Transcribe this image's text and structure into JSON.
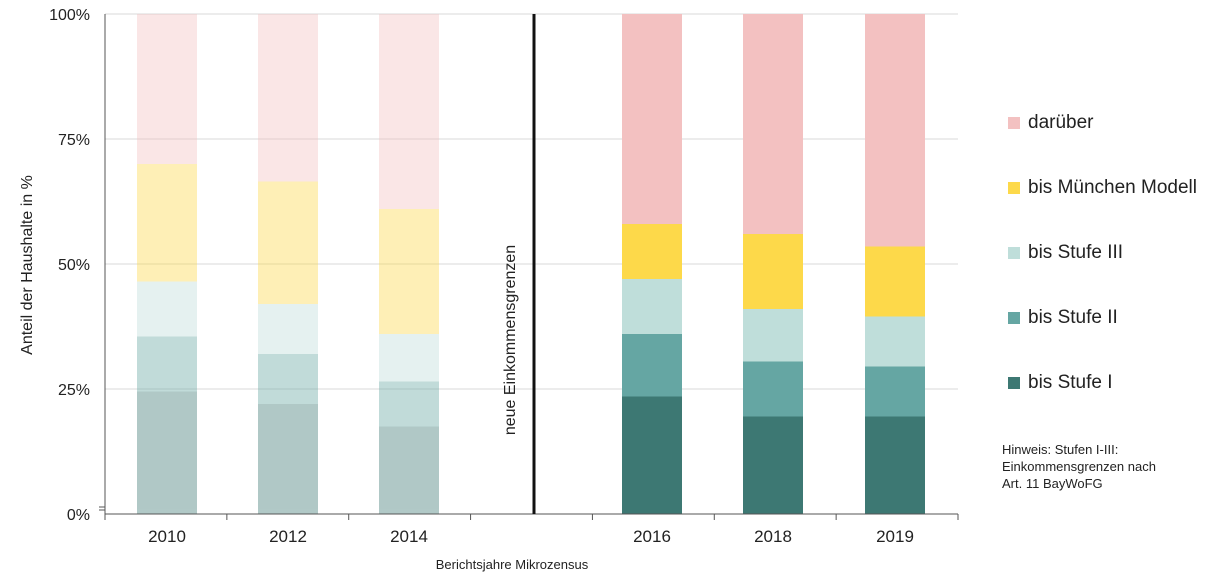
{
  "chart_data": {
    "type": "bar",
    "stacked": true,
    "categories": [
      "2010",
      "2012",
      "2014",
      "2016",
      "2018",
      "2019"
    ],
    "series": [
      {
        "name": "bis Stufe I",
        "color": "#3d7873",
        "values": [
          24.5,
          22.0,
          17.5,
          23.5,
          19.5,
          19.5
        ]
      },
      {
        "name": "bis Stufe II",
        "color": "#65a6a3",
        "values": [
          11.0,
          10.0,
          9.0,
          12.5,
          11.0,
          10.0
        ]
      },
      {
        "name": "bis Stufe III",
        "color": "#bfdeda",
        "values": [
          11.0,
          10.0,
          9.5,
          11.0,
          10.5,
          10.0
        ]
      },
      {
        "name": "bis München Modell",
        "color": "#fdd94a",
        "values": [
          23.5,
          24.5,
          25.0,
          11.0,
          15.0,
          14.0
        ]
      },
      {
        "name": "darüber",
        "color": "#f3c1c1",
        "values": [
          30.0,
          33.5,
          39.0,
          42.0,
          44.0,
          46.5
        ]
      }
    ],
    "faded_categories": [
      "2010",
      "2012",
      "2014"
    ],
    "ylim": [
      0,
      100
    ],
    "yticks": [
      "0%",
      "25%",
      "50%",
      "75%",
      "100%"
    ],
    "ylabel": "Anteil der Haushalte in %",
    "xlabel": "Berichtsjahre Mikrozensus",
    "divider_label": "neue Einkommensgrenzen",
    "grid": true,
    "legend_position": "right"
  },
  "legend_order": [
    "darüber",
    "bis München Modell",
    "bis Stufe III",
    "bis Stufe II",
    "bis Stufe I"
  ],
  "note": [
    "Hinweis: Stufen I-III:",
    "Einkommensgrenzen nach",
    "Art. 11 BayWoFG"
  ]
}
